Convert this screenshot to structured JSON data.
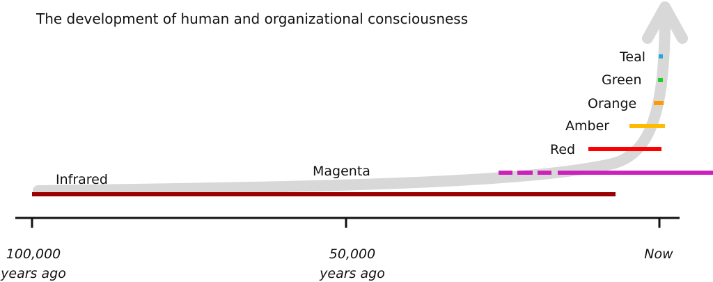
{
  "title": "The development of human and organizational consciousness",
  "axis": {
    "ticks": [
      {
        "line1": "100,000",
        "line2": "years ago"
      },
      {
        "line1": "50,000",
        "line2": "years ago"
      },
      {
        "line1": "Now",
        "line2": ""
      }
    ]
  },
  "eras": [
    {
      "label": "Infrared",
      "color": "#990000"
    },
    {
      "label": "Magenta",
      "color": "#cc22bb"
    },
    {
      "label": "Red",
      "color": "#ff0000"
    },
    {
      "label": "Amber",
      "color": "#ffbb00"
    },
    {
      "label": "Orange",
      "color": "#ff9900"
    },
    {
      "label": "Green",
      "color": "#22cc22"
    },
    {
      "label": "Teal",
      "color": "#22aadd"
    }
  ],
  "colors": {
    "growth_arrow": "#d8d8d8",
    "axis": "#111111"
  }
}
